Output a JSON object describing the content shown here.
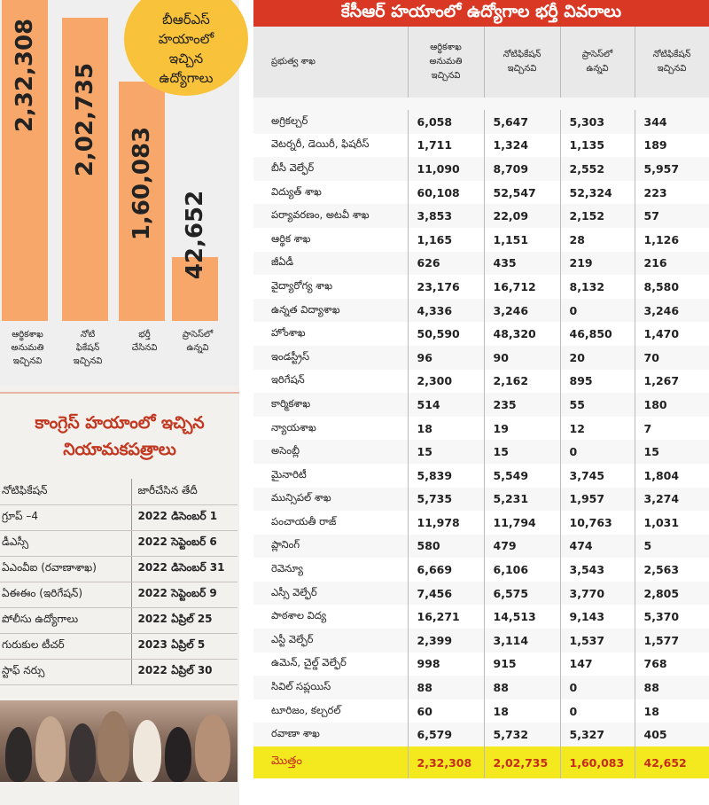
{
  "bubble_text": "బీఆర్ఎస్\nహయాంలో\nఇచ్చిన\nఉద్యోగాలు",
  "chart_data": {
    "type": "bar",
    "title": "బీఆర్ఎస్ హయాంలో ఇచ్చిన ఉద్యోగాలు",
    "categories": [
      "ఆర్థికశాఖ\nఅనుమతి\nఇచ్చినవి",
      "నోటి\nఫికేషన్\nఇచ్చినవి",
      "భర్తీ\nచేసినవి",
      "ప్రాసెస్‌లో\nఉన్నవి"
    ],
    "value_labels": [
      "2,32,308",
      "2,02,735",
      "1,60,083",
      "42,652"
    ],
    "values": [
      232308,
      202735,
      160083,
      42652
    ],
    "bar_color": "#f7a76a"
  },
  "congress": {
    "title": "కాంగ్రెస్ హయాంలో ఇచ్చిన\nనియామకపత్రాలు",
    "header": [
      "నోటిఫికేషన్",
      "జారీచేసిన తేదీ"
    ],
    "rows": [
      [
        "గ్రూప్ –4",
        "2022 డిసెంబర్ 1"
      ],
      [
        "డీఎస్సీ",
        "2022 సెప్టెంబర్ 6"
      ],
      [
        "ఏఎంవీఐ (రవాణాశాఖ)",
        "2022 డిసెంబర్ 31"
      ],
      [
        "ఏఈఈం (ఇరిగేషన్)",
        "2022 సెప్టెంబర్ 9"
      ],
      [
        "పోలీసు ఉద్యోగాలు",
        "2022 ఏప్రిల్ 25"
      ],
      [
        "గురుకుల టీచర్",
        "2023 ఏప్రిల్ 5"
      ],
      [
        "స్టాఫ్ నర్సు",
        "2022 ఏప్రిల్ 30"
      ]
    ]
  },
  "table": {
    "title": "కేసీఆర్ హయాంలో ఉద్యోగాల భర్తీ వివరాలు",
    "headers": [
      "ప్రభుత్వ శాఖ",
      "ఆర్థికశాఖ\nఅనుమతి\nఇచ్చినవి",
      "నోటిఫికేషన్\nఇచ్చినవి",
      "ప్రాసెస్‌లో\nఉన్నవి",
      "నోటిఫికేషన్\nఇచ్చినవి"
    ],
    "rows": [
      [
        "అగ్రికల్చర్",
        "6,058",
        "5,647",
        "5,303",
        "344"
      ],
      [
        "వెటర్నరీ, డెయిరీ, ఫిషరీస్",
        "1,711",
        "1,324",
        "1,135",
        "189"
      ],
      [
        "బీసీ వెల్ఫేర్",
        "11,090",
        "8,709",
        "2,552",
        "5,957"
      ],
      [
        "విద్యుత్ శాఖ",
        "60,108",
        "52,547",
        "52,324",
        "223"
      ],
      [
        "పర్యావరణం, అటవీ శాఖ",
        "3,853",
        "22,09",
        "2,152",
        "57"
      ],
      [
        "ఆర్థిక శాఖ",
        "1,165",
        "1,151",
        "28",
        "1,126"
      ],
      [
        "జీఏడీ",
        "626",
        "435",
        "219",
        "216"
      ],
      [
        "వైద్యారోగ్య శాఖ",
        "23,176",
        "16,712",
        "8,132",
        "8,580"
      ],
      [
        "ఉన్నత విద్యాశాఖ",
        "4,336",
        "3,246",
        "0",
        "3,246"
      ],
      [
        "హోంశాఖ",
        "50,590",
        "48,320",
        "46,850",
        "1,470"
      ],
      [
        "ఇండస్ట్రీస్",
        "96",
        "90",
        "20",
        "70"
      ],
      [
        "ఇరిగేషన్",
        "2,300",
        "2,162",
        "895",
        "1,267"
      ],
      [
        "కార్మికశాఖ",
        "514",
        "235",
        "55",
        "180"
      ],
      [
        "న్యాయశాఖ",
        "18",
        "19",
        "12",
        "7"
      ],
      [
        "అసెంబ్లీ",
        "15",
        "15",
        "0",
        "15"
      ],
      [
        "మైనారిటీ",
        "5,839",
        "5,549",
        "3,745",
        "1,804"
      ],
      [
        "మున్సిపల్ శాఖ",
        "5,735",
        "5,231",
        "1,957",
        "3,274"
      ],
      [
        "పంచాయతీ రాజ్",
        "11,978",
        "11,794",
        "10,763",
        "1,031"
      ],
      [
        "ప్లానింగ్",
        "580",
        "479",
        "474",
        "5"
      ],
      [
        "రెవెన్యూ",
        "6,669",
        "6,106",
        "3,543",
        "2,563"
      ],
      [
        "ఎస్సీ వెల్ఫేర్",
        "7,456",
        "6,575",
        "3,770",
        "2,805"
      ],
      [
        "పాఠశాల విద్య",
        "16,271",
        "14,513",
        "9,143",
        "5,370"
      ],
      [
        "ఎస్టీ వెల్ఫేర్",
        "2,399",
        "3,114",
        "1,537",
        "1,577"
      ],
      [
        "ఉమెన్, చైల్డ్ వెల్ఫేర్",
        "998",
        "915",
        "147",
        "768"
      ],
      [
        "సివిల్ సప్లయిస్",
        "88",
        "88",
        "0",
        "88"
      ],
      [
        "టూరిజం, కల్చరల్",
        "60",
        "18",
        "0",
        "18"
      ],
      [
        "రవాణా శాఖ",
        "6,579",
        "5,732",
        "5,327",
        "405"
      ]
    ],
    "total": [
      "మొత్తం",
      "2,32,308",
      "2,02,735",
      "1,60,083",
      "42,652"
    ]
  },
  "colors": {
    "title_red": "#d93825",
    "total_yellow": "#f4e91f",
    "total_text": "#c62b1a",
    "bubble": "#f8c33a"
  }
}
